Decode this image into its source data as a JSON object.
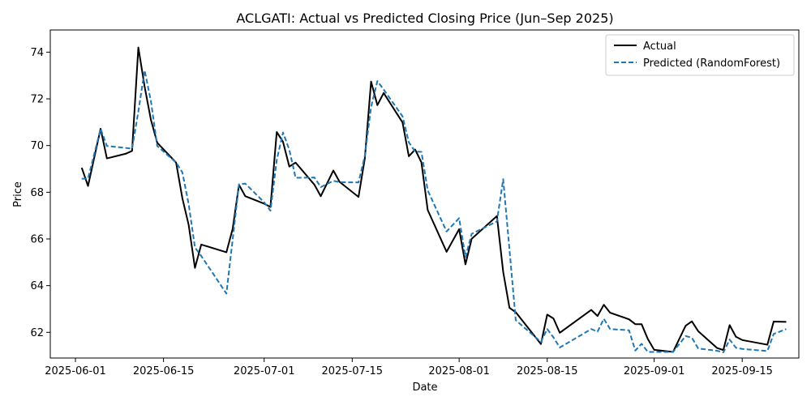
{
  "chart_data": {
    "type": "line",
    "title": "ACLGATI: Actual vs Predicted Closing Price (Jun–Sep 2025)",
    "xlabel": "Date",
    "ylabel": "Price",
    "x_axis_type": "date",
    "xlim": [
      "2025-05-28",
      "2025-09-24"
    ],
    "ylim": [
      60.9,
      74.95
    ],
    "x_ticks": [
      "2025-06-01",
      "2025-06-15",
      "2025-07-01",
      "2025-07-15",
      "2025-08-01",
      "2025-08-15",
      "2025-09-01",
      "2025-09-15"
    ],
    "y_ticks": [
      62,
      64,
      66,
      68,
      70,
      72,
      74
    ],
    "legend_position": "top-right",
    "grid": false,
    "series": [
      {
        "name": "Actual",
        "color": "#000000",
        "style": "solid",
        "points": [
          [
            "2025-06-02",
            69.05
          ],
          [
            "2025-06-03",
            68.27
          ],
          [
            "2025-06-05",
            70.72
          ],
          [
            "2025-06-06",
            69.45
          ],
          [
            "2025-06-09",
            69.65
          ],
          [
            "2025-06-10",
            69.77
          ],
          [
            "2025-06-11",
            74.2
          ],
          [
            "2025-06-12",
            72.52
          ],
          [
            "2025-06-13",
            71.1
          ],
          [
            "2025-06-14",
            70.12
          ],
          [
            "2025-06-17",
            69.27
          ],
          [
            "2025-06-18",
            67.74
          ],
          [
            "2025-06-19",
            66.6
          ],
          [
            "2025-06-20",
            64.76
          ],
          [
            "2025-06-21",
            65.76
          ],
          [
            "2025-06-25",
            65.43
          ],
          [
            "2025-06-26",
            66.44
          ],
          [
            "2025-06-27",
            68.32
          ],
          [
            "2025-06-28",
            67.83
          ],
          [
            "2025-07-01",
            67.51
          ],
          [
            "2025-07-02",
            67.37
          ],
          [
            "2025-07-03",
            70.58
          ],
          [
            "2025-07-04",
            70.16
          ],
          [
            "2025-07-05",
            69.1
          ],
          [
            "2025-07-06",
            69.27
          ],
          [
            "2025-07-09",
            68.32
          ],
          [
            "2025-07-10",
            67.83
          ],
          [
            "2025-07-12",
            68.93
          ],
          [
            "2025-07-13",
            68.44
          ],
          [
            "2025-07-16",
            67.8
          ],
          [
            "2025-07-17",
            69.44
          ],
          [
            "2025-07-18",
            72.74
          ],
          [
            "2025-07-19",
            71.73
          ],
          [
            "2025-07-20",
            72.25
          ],
          [
            "2025-07-23",
            70.99
          ],
          [
            "2025-07-24",
            69.54
          ],
          [
            "2025-07-25",
            69.83
          ],
          [
            "2025-07-26",
            69.28
          ],
          [
            "2025-07-27",
            67.24
          ],
          [
            "2025-07-30",
            65.45
          ],
          [
            "2025-08-01",
            66.42
          ],
          [
            "2025-08-02",
            64.91
          ],
          [
            "2025-08-03",
            66.01
          ],
          [
            "2025-08-07",
            66.98
          ],
          [
            "2025-08-08",
            64.59
          ],
          [
            "2025-08-09",
            63.05
          ],
          [
            "2025-08-10",
            62.86
          ],
          [
            "2025-08-14",
            61.5
          ],
          [
            "2025-08-15",
            62.76
          ],
          [
            "2025-08-16",
            62.59
          ],
          [
            "2025-08-17",
            61.98
          ],
          [
            "2025-08-22",
            62.96
          ],
          [
            "2025-08-23",
            62.7
          ],
          [
            "2025-08-24",
            63.18
          ],
          [
            "2025-08-25",
            62.84
          ],
          [
            "2025-08-28",
            62.56
          ],
          [
            "2025-08-29",
            62.35
          ],
          [
            "2025-08-30",
            62.35
          ],
          [
            "2025-08-31",
            61.71
          ],
          [
            "2025-09-01",
            61.25
          ],
          [
            "2025-09-04",
            61.16
          ],
          [
            "2025-09-06",
            62.28
          ],
          [
            "2025-09-07",
            62.47
          ],
          [
            "2025-09-08",
            62.05
          ],
          [
            "2025-09-11",
            61.33
          ],
          [
            "2025-09-12",
            61.24
          ],
          [
            "2025-09-13",
            62.31
          ],
          [
            "2025-09-14",
            61.81
          ],
          [
            "2025-09-15",
            61.67
          ],
          [
            "2025-09-19",
            61.47
          ],
          [
            "2025-09-20",
            62.46
          ],
          [
            "2025-09-22",
            62.45
          ]
        ]
      },
      {
        "name": "Predicted (RandomForest)",
        "color": "#1f77b4",
        "style": "dashed",
        "points": [
          [
            "2025-06-02",
            68.58
          ],
          [
            "2025-06-03",
            68.58
          ],
          [
            "2025-06-05",
            70.72
          ],
          [
            "2025-06-06",
            69.98
          ],
          [
            "2025-06-09",
            69.9
          ],
          [
            "2025-06-10",
            69.86
          ],
          [
            "2025-06-11",
            71.46
          ],
          [
            "2025-06-12",
            73.22
          ],
          [
            "2025-06-13",
            71.9
          ],
          [
            "2025-06-14",
            69.98
          ],
          [
            "2025-06-17",
            69.27
          ],
          [
            "2025-06-18",
            68.85
          ],
          [
            "2025-06-19",
            67.49
          ],
          [
            "2025-06-20",
            65.63
          ],
          [
            "2025-06-21",
            65.27
          ],
          [
            "2025-06-25",
            63.66
          ],
          [
            "2025-06-26",
            65.99
          ],
          [
            "2025-06-27",
            68.34
          ],
          [
            "2025-06-28",
            68.37
          ],
          [
            "2025-07-01",
            67.57
          ],
          [
            "2025-07-02",
            67.21
          ],
          [
            "2025-07-03",
            69.38
          ],
          [
            "2025-07-04",
            70.56
          ],
          [
            "2025-07-05",
            69.82
          ],
          [
            "2025-07-06",
            68.62
          ],
          [
            "2025-07-09",
            68.63
          ],
          [
            "2025-07-10",
            68.22
          ],
          [
            "2025-07-12",
            68.49
          ],
          [
            "2025-07-13",
            68.43
          ],
          [
            "2025-07-16",
            68.42
          ],
          [
            "2025-07-17",
            69.56
          ],
          [
            "2025-07-18",
            71.65
          ],
          [
            "2025-07-19",
            72.76
          ],
          [
            "2025-07-20",
            72.4
          ],
          [
            "2025-07-23",
            71.25
          ],
          [
            "2025-07-24",
            70.14
          ],
          [
            "2025-07-25",
            69.74
          ],
          [
            "2025-07-26",
            69.73
          ],
          [
            "2025-07-27",
            68.08
          ],
          [
            "2025-07-30",
            66.32
          ],
          [
            "2025-08-01",
            66.89
          ],
          [
            "2025-08-02",
            65.22
          ],
          [
            "2025-08-03",
            66.22
          ],
          [
            "2025-08-07",
            66.75
          ],
          [
            "2025-08-08",
            68.56
          ],
          [
            "2025-08-09",
            65.54
          ],
          [
            "2025-08-10",
            62.52
          ],
          [
            "2025-08-14",
            61.59
          ],
          [
            "2025-08-15",
            62.14
          ],
          [
            "2025-08-16",
            61.78
          ],
          [
            "2025-08-17",
            61.35
          ],
          [
            "2025-08-22",
            62.14
          ],
          [
            "2025-08-23",
            62.03
          ],
          [
            "2025-08-24",
            62.58
          ],
          [
            "2025-08-25",
            62.14
          ],
          [
            "2025-08-28",
            62.09
          ],
          [
            "2025-08-29",
            61.22
          ],
          [
            "2025-08-30",
            61.51
          ],
          [
            "2025-08-31",
            61.16
          ],
          [
            "2025-09-01",
            61.16
          ],
          [
            "2025-09-04",
            61.16
          ],
          [
            "2025-09-06",
            61.84
          ],
          [
            "2025-09-07",
            61.77
          ],
          [
            "2025-09-08",
            61.31
          ],
          [
            "2025-09-11",
            61.21
          ],
          [
            "2025-09-12",
            61.14
          ],
          [
            "2025-09-13",
            61.69
          ],
          [
            "2025-09-14",
            61.34
          ],
          [
            "2025-09-15",
            61.29
          ],
          [
            "2025-09-19",
            61.2
          ],
          [
            "2025-09-20",
            61.93
          ],
          [
            "2025-09-22",
            62.14
          ]
        ]
      }
    ]
  }
}
